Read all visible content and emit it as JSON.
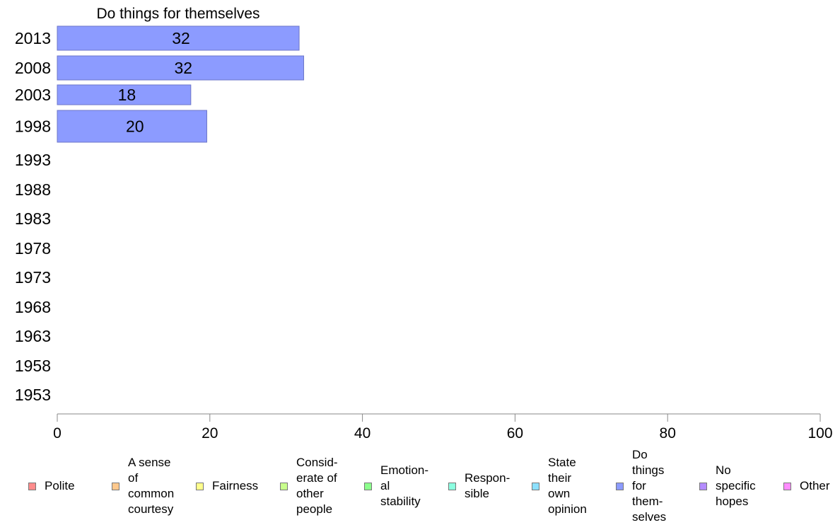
{
  "chart_data": {
    "type": "bar",
    "orientation": "horizontal",
    "title": "Do things for themselves",
    "categories": [
      "2013",
      "2008",
      "2003",
      "1998",
      "1993",
      "1988",
      "1983",
      "1978",
      "1973",
      "1968",
      "1963",
      "1958",
      "1953"
    ],
    "series": [
      {
        "name": "Do things for themselves",
        "values": [
          32,
          32,
          18,
          20,
          null,
          null,
          null,
          null,
          null,
          null,
          null,
          null,
          null
        ]
      }
    ],
    "data_labels": [
      "32",
      "32",
      "18",
      "20",
      "",
      "",
      "",
      "",
      "",
      "",
      "",
      "",
      ""
    ],
    "display_values": [
      31.7,
      32.3,
      17.5,
      19.6,
      null,
      null,
      null,
      null,
      null,
      null,
      null,
      null,
      null
    ],
    "xlim": [
      0,
      100
    ],
    "x_ticks": [
      "0",
      "20",
      "40",
      "60",
      "80",
      "100"
    ],
    "xlabel": "",
    "ylabel": "",
    "grid": false,
    "legend_position": "bottom",
    "bar_color": "#8c9bff"
  },
  "legend": {
    "items": [
      {
        "label": "Polite",
        "color": "#ff8c8c"
      },
      {
        "label": "A sense\nof\ncommon\ncourtesy",
        "color": "#ffc88c"
      },
      {
        "label": "Fairness",
        "color": "#ffff8c"
      },
      {
        "label": "Consid-\nerate of\nother\npeople",
        "color": "#c8ff8c"
      },
      {
        "label": "Emotion-\nal\nstability",
        "color": "#8cff8c"
      },
      {
        "label": "Respon-\nsible",
        "color": "#8cffe0"
      },
      {
        "label": "State\ntheir\nown\nopinion",
        "color": "#8ce0ff"
      },
      {
        "label": "Do\nthings\nfor\nthem-\nselves",
        "color": "#8c9bff"
      },
      {
        "label": "No\nspecific\nhopes",
        "color": "#b48cff"
      },
      {
        "label": "Other",
        "color": "#ff8cff"
      }
    ]
  }
}
